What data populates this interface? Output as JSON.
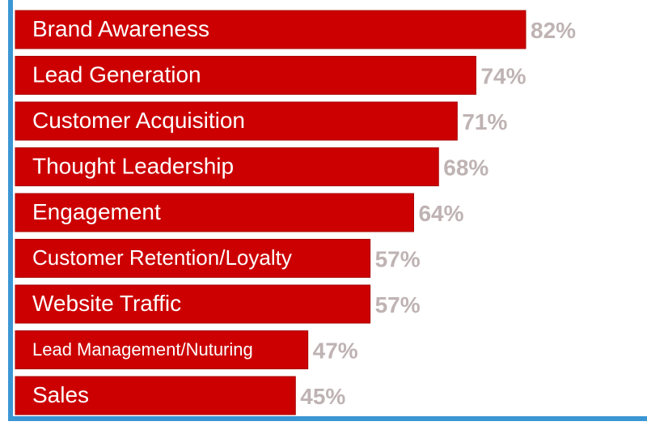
{
  "chart_data": {
    "type": "bar",
    "orientation": "horizontal",
    "categories": [
      "Brand Awareness",
      "Lead Generation",
      "Customer Acquisition",
      "Thought Leadership",
      "Engagement",
      "Customer Retention/Loyalty",
      "Website Traffic",
      "Lead Management/Nuturing",
      "Sales"
    ],
    "values": [
      82,
      74,
      71,
      68,
      64,
      57,
      57,
      47,
      45
    ],
    "value_labels": [
      "82%",
      "74%",
      "71%",
      "68%",
      "64%",
      "57%",
      "57%",
      "47%",
      "45%"
    ],
    "unit": "%",
    "title": "",
    "xlabel": "",
    "ylabel": "",
    "xlim": [
      0,
      100
    ],
    "grid": false,
    "legend": "none",
    "colors": {
      "bar": "#cc0000",
      "bar_stroke": "#a80000",
      "bar_label": "#ffffff",
      "value_label": "#bfb3b3",
      "axis": "#3b96d4",
      "background": "#ffffff"
    }
  }
}
